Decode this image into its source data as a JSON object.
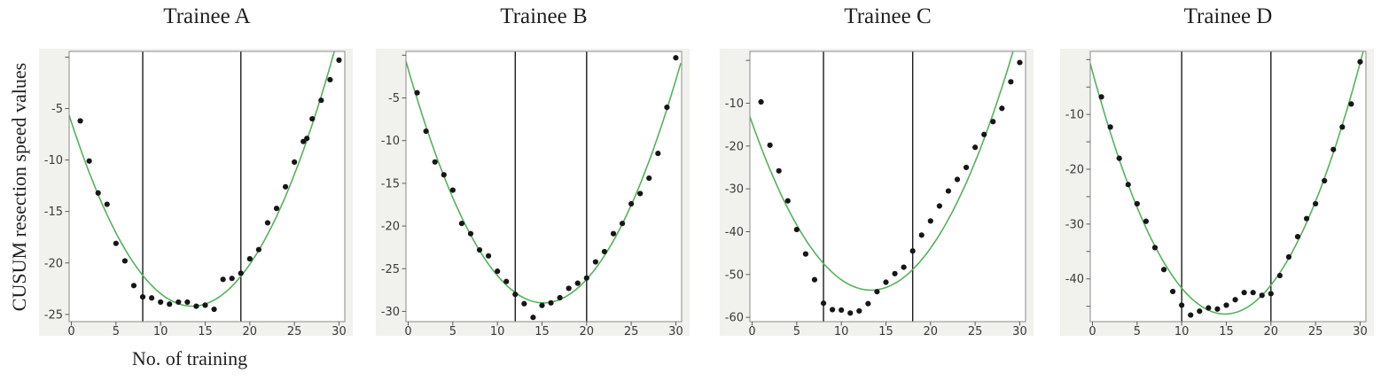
{
  "figure": {
    "y_axis_label": "CUSUM resection speed values",
    "x_axis_label": "No. of training"
  },
  "style": {
    "curve_color": "#53b35a",
    "point_color": "#161616",
    "ref_line_color": "#1c1c1c",
    "panel_bg": "#f1f1ee",
    "plot_bg": "#ffffff",
    "plot_border": "#8a8a8a",
    "tick_color": "#5a5a5a",
    "tick_label_color": "#3a3a3a",
    "text_color": "#1f1f1f"
  },
  "chart_data": [
    {
      "type": "scatter",
      "title": "Trainee A",
      "xlabel": "No. of training",
      "ylabel": "CUSUM resection speed values",
      "grid": false,
      "legend": "none",
      "fit": "quadratic",
      "xlim": [
        -0.25,
        30.65
      ],
      "ylim": [
        -25.7,
        0.55
      ],
      "x_ticks": [
        0,
        5,
        10,
        15,
        20,
        25,
        30
      ],
      "y_tick_values": [
        0,
        -5,
        -10,
        -15,
        -20,
        -25
      ],
      "y_tick_labels": [
        "",
        "-5",
        "-10",
        "-15",
        "-20",
        "-25"
      ],
      "ref_lines_x": [
        8,
        19
      ],
      "x": [
        1,
        2,
        3,
        4,
        5,
        6,
        7,
        8,
        9,
        10,
        11,
        12,
        13,
        14,
        15,
        16,
        17,
        18,
        19,
        20,
        21,
        22,
        23,
        24,
        25,
        26,
        27,
        28,
        29,
        30,
        26.4
      ],
      "y": [
        -6.2,
        -10.1,
        -13.2,
        -14.3,
        -18.1,
        -19.8,
        -22.2,
        -23.3,
        -23.4,
        -23.8,
        -24.0,
        -23.8,
        -23.8,
        -24.2,
        -24.1,
        -24.5,
        -21.6,
        -21.5,
        -21.0,
        -19.6,
        -18.7,
        -16.1,
        -14.7,
        -12.6,
        -10.2,
        -8.2,
        -6.0,
        -4.2,
        -2.2,
        -0.3,
        -7.9
      ]
    },
    {
      "type": "scatter",
      "title": "Trainee B",
      "xlabel": "",
      "ylabel": "",
      "grid": false,
      "legend": "none",
      "fit": "quadratic",
      "xlim": [
        -0.25,
        30.65
      ],
      "ylim": [
        -31.2,
        0.45
      ],
      "x_ticks": [
        0,
        5,
        10,
        15,
        20,
        25,
        30
      ],
      "y_tick_values": [
        0,
        -5,
        -10,
        -15,
        -20,
        -25,
        -30
      ],
      "y_tick_labels": [
        "",
        "-5",
        "-10",
        "-15",
        "-20",
        "-25",
        "-30"
      ],
      "ref_lines_x": [
        12,
        20
      ],
      "x": [
        1,
        2,
        3,
        4,
        5,
        6,
        7,
        8,
        9,
        10,
        11,
        12,
        13,
        14,
        15,
        16,
        17,
        18,
        19,
        20,
        21,
        22,
        23,
        24,
        25,
        26,
        27,
        28,
        29,
        30
      ],
      "y": [
        -4.4,
        -8.9,
        -12.5,
        -14.0,
        -15.8,
        -19.7,
        -20.9,
        -22.8,
        -23.5,
        -25.3,
        -26.5,
        -28.0,
        -29.1,
        -30.7,
        -29.3,
        -29.0,
        -28.4,
        -27.3,
        -26.7,
        -26.1,
        -24.2,
        -23.0,
        -20.9,
        -19.7,
        -17.4,
        -16.2,
        -14.4,
        -11.5,
        -6.1,
        -0.3
      ]
    },
    {
      "type": "scatter",
      "title": "Trainee C",
      "xlabel": "",
      "ylabel": "",
      "grid": false,
      "legend": "none",
      "fit": "quadratic",
      "xlim": [
        -0.25,
        30.65
      ],
      "ylim": [
        -61,
        2.1
      ],
      "x_ticks": [
        0,
        5,
        10,
        15,
        20,
        25,
        30
      ],
      "y_tick_values": [
        0,
        -10,
        -20,
        -30,
        -40,
        -50,
        -60
      ],
      "y_tick_labels": [
        "",
        "-10",
        "-20",
        "-30",
        "-40",
        "-50",
        "-60"
      ],
      "ref_lines_x": [
        8,
        18
      ],
      "x": [
        1,
        2,
        3,
        4,
        5,
        6,
        7,
        8,
        9,
        10,
        11,
        12,
        13,
        14,
        15,
        16,
        17,
        18,
        19,
        20,
        21,
        22,
        23,
        24,
        25,
        26,
        27,
        28,
        29,
        30
      ],
      "y": [
        -9.7,
        -19.8,
        -25.8,
        -32.8,
        -39.5,
        -45.2,
        -51.2,
        -56.7,
        -58.2,
        -58.3,
        -59.0,
        -58.5,
        -56.8,
        -54.0,
        -51.8,
        -49.8,
        -48.3,
        -44.5,
        -40.8,
        -37.5,
        -34.0,
        -30.5,
        -27.8,
        -25.0,
        -20.3,
        -17.3,
        -14.3,
        -11.2,
        -5.0,
        -0.5
      ]
    },
    {
      "type": "scatter",
      "title": "Trainee D",
      "xlabel": "",
      "ylabel": "",
      "grid": false,
      "legend": "none",
      "fit": "quadratic",
      "xlim": [
        -0.25,
        30.65
      ],
      "ylim": [
        -47.8,
        1.5
      ],
      "x_ticks": [
        0,
        5,
        10,
        15,
        20,
        25,
        30
      ],
      "y_tick_values": [
        0,
        -5,
        -10,
        -15,
        -20,
        -25,
        -30,
        -35,
        -40,
        -45
      ],
      "y_tick_labels": [
        "",
        "",
        "-10",
        "",
        "-20",
        "",
        "-30",
        "",
        "-40",
        ""
      ],
      "ref_lines_x": [
        10,
        20
      ],
      "x": [
        1,
        2,
        3,
        4,
        5,
        6,
        7,
        8,
        9,
        10,
        11,
        12,
        13,
        14,
        15,
        16,
        17,
        18,
        19,
        20,
        21,
        22,
        23,
        24,
        25,
        26,
        27,
        28,
        29,
        30
      ],
      "y": [
        -6.8,
        -12.3,
        -18.0,
        -22.8,
        -26.3,
        -29.5,
        -34.3,
        -38.3,
        -42.3,
        -44.8,
        -46.6,
        -45.9,
        -45.3,
        -45.5,
        -44.8,
        -43.8,
        -42.5,
        -42.5,
        -43.0,
        -42.7,
        -39.4,
        -36.0,
        -32.3,
        -29.0,
        -26.3,
        -22.1,
        -16.4,
        -12.3,
        -8.1,
        -0.4
      ]
    }
  ]
}
